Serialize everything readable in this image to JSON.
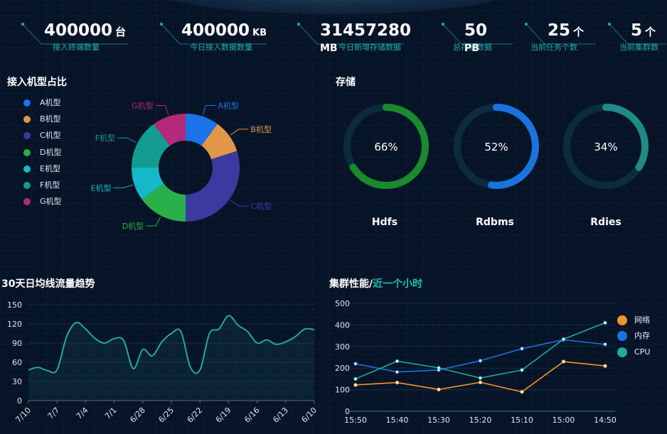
{
  "stats": [
    {
      "value": "400000",
      "unit": "台",
      "label": "接入终端数量"
    },
    {
      "value": "400000",
      "unit": "KB",
      "label": "今日接入数据数量"
    },
    {
      "value": "31457280",
      "unit": "MB",
      "label": "今日新增存储数据"
    },
    {
      "value": "50",
      "unit": "PB",
      "label": "总存储数据"
    },
    {
      "value": "25",
      "unit": "个",
      "label": "当前任务个数"
    },
    {
      "value": "5",
      "unit": "个",
      "label": "当前集群数"
    }
  ],
  "sections": {
    "machine_share": "接入机型占比",
    "storage": "存储",
    "traffic": "30天日均线流量趋势",
    "cluster_prefix": "集群性能/",
    "cluster_highlight": "近一个小时"
  },
  "colors": {
    "accent": "#1cb0a8",
    "A": "#1a73e8",
    "B": "#e2964a",
    "C": "#3a3aa0",
    "D": "#2ab04a",
    "E": "#14b8c8",
    "F": "#139c92",
    "G": "#b22a78",
    "hdfs": "#1a8a2c",
    "rdbms": "#1a74e0",
    "rdies": "#1f8a86",
    "ring_track": "#0c2c3e",
    "net": "#f0962a",
    "mem": "#1a74e0",
    "cpu": "#1fa89c",
    "line": "#25a99a"
  },
  "machine_legend": [
    {
      "key": "A",
      "label": "A机型",
      "color": "#1a73e8"
    },
    {
      "key": "B",
      "label": "B机型",
      "color": "#e2964a"
    },
    {
      "key": "C",
      "label": "C机型",
      "color": "#3a3aa0"
    },
    {
      "key": "D",
      "label": "D机型",
      "color": "#2ab04a"
    },
    {
      "key": "E",
      "label": "E机型",
      "color": "#14b8c8"
    },
    {
      "key": "F",
      "label": "F机型",
      "color": "#139c92"
    },
    {
      "key": "G",
      "label": "G机型",
      "color": "#b22a78"
    }
  ],
  "storage_rings": [
    {
      "name": "Hdfs",
      "percent": 66,
      "label": "66%",
      "color": "#1a8a2c"
    },
    {
      "name": "Rdbms",
      "percent": 52,
      "label": "52%",
      "color": "#1a74e0"
    },
    {
      "name": "Rdies",
      "percent": 34,
      "label": "34%",
      "color": "#1f8a86"
    }
  ],
  "chart_data": [
    {
      "type": "pie",
      "title": "接入机型占比",
      "labels": [
        "A机型",
        "B机型",
        "C机型",
        "D机型",
        "E机型",
        "F机型",
        "G机型"
      ],
      "values": [
        10,
        10,
        30,
        15,
        10,
        15,
        10
      ]
    },
    {
      "type": "area",
      "title": "30天日均线流量趋势",
      "categories": [
        "7/10",
        "7/9",
        "7/8",
        "7/7",
        "7/6",
        "7/5",
        "7/4",
        "7/3",
        "7/2",
        "7/1",
        "6/30",
        "6/29",
        "6/28",
        "6/27",
        "6/26",
        "6/25",
        "6/24",
        "6/23",
        "6/22",
        "6/21",
        "6/20",
        "6/19",
        "6/18",
        "6/17",
        "6/16",
        "6/15",
        "6/14",
        "6/13",
        "6/12",
        "6/11",
        "6/10"
      ],
      "tick_labels": [
        "7/10",
        "7/7",
        "7/4",
        "7/1",
        "6/28",
        "6/25",
        "6/22",
        "6/19",
        "6/16",
        "6/13",
        "6/10"
      ],
      "values": [
        48,
        52,
        47,
        48,
        100,
        122,
        112,
        97,
        90,
        97,
        94,
        50,
        80,
        70,
        92,
        105,
        108,
        52,
        48,
        105,
        112,
        133,
        118,
        108,
        90,
        95,
        88,
        92,
        100,
        112,
        111
      ],
      "ylim": [
        0,
        150
      ],
      "yticks": [
        0,
        30,
        60,
        90,
        120,
        150
      ]
    },
    {
      "type": "line",
      "title": "集群性能/近一个小时",
      "categories": [
        "15:50",
        "15:40",
        "15:30",
        "15:20",
        "15:10",
        "15:00",
        "14:50"
      ],
      "series": [
        {
          "name": "网络",
          "values": [
            122,
            133,
            101,
            134,
            90,
            230,
            210
          ]
        },
        {
          "name": "内存",
          "values": [
            220,
            182,
            191,
            234,
            290,
            331,
            310
          ]
        },
        {
          "name": "CPU",
          "values": [
            150,
            232,
            201,
            154,
            191,
            334,
            410
          ]
        }
      ],
      "ylim": [
        0,
        500
      ],
      "yticks": [
        0,
        100,
        200,
        300,
        400,
        500
      ]
    }
  ]
}
